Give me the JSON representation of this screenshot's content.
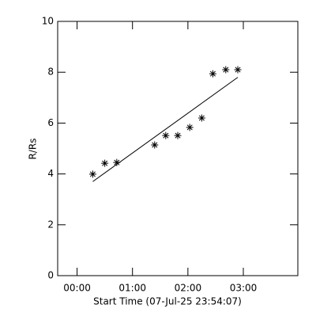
{
  "chart_data": {
    "type": "scatter",
    "xlabel": "Start Time (07-Jul-25 23:54:07)",
    "ylabel": "R/Rs",
    "x": [
      17,
      30,
      43,
      84,
      96,
      109,
      122,
      135,
      147,
      161,
      174
    ],
    "values": [
      3.99,
      4.42,
      4.45,
      5.14,
      5.51,
      5.51,
      5.83,
      6.2,
      7.94,
      8.1,
      8.1
    ],
    "fit": {
      "x": [
        17,
        174
      ],
      "values": [
        3.7,
        7.8
      ]
    },
    "color": "#000000",
    "xlim": [
      -21,
      239
    ],
    "xticks": [
      {
        "value": 0,
        "label": "00:00"
      },
      {
        "value": 60,
        "label": "01:00"
      },
      {
        "value": 120,
        "label": "02:00"
      },
      {
        "value": 180,
        "label": "03:00"
      }
    ],
    "ylim": [
      0,
      10
    ],
    "yticks": [
      0,
      2,
      4,
      6,
      8,
      10
    ]
  }
}
